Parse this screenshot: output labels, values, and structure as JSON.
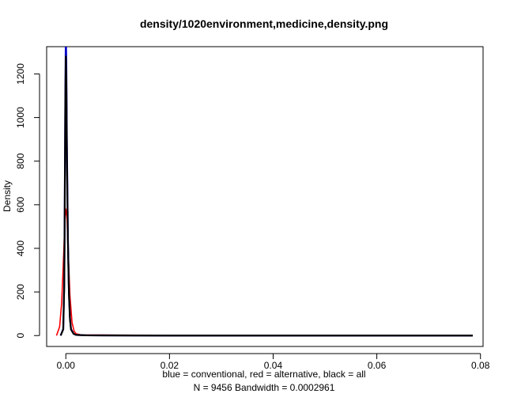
{
  "chart_data": {
    "type": "line",
    "title": "density/1020environment,medicine,density.png",
    "ylabel": "Density",
    "xlabel_line1": "blue = conventional, red = alternative, black = all",
    "xlabel_line2": "N = 9456   Bandwidth = 0.0002961",
    "xlim": [
      -0.0037,
      0.0805
    ],
    "ylim": [
      -50,
      1325
    ],
    "xticks": [
      0.0,
      0.02,
      0.04,
      0.06,
      0.08
    ],
    "xtick_labels": [
      "0.00",
      "0.02",
      "0.04",
      "0.06",
      "0.08"
    ],
    "yticks": [
      0,
      200,
      400,
      600,
      800,
      1000,
      1200
    ],
    "ytick_labels": [
      "0",
      "200",
      "400",
      "600",
      "800",
      "1000",
      "1200"
    ],
    "series": [
      {
        "color": "#ff0000",
        "x": [
          -0.0018,
          -0.0012,
          -0.0008,
          -0.0004,
          -0.0002,
          0.0,
          0.0002,
          0.0004,
          0.0008,
          0.0012,
          0.0016,
          0.002,
          0.003,
          0.01,
          0.03,
          0.05,
          0.07,
          0.0785
        ],
        "y": [
          0,
          40,
          150,
          380,
          520,
          580,
          550,
          420,
          180,
          60,
          20,
          8,
          3,
          2,
          1,
          1,
          1,
          0
        ]
      },
      {
        "color": "#0000cc",
        "x": [
          -0.001,
          -0.0005,
          -0.0003,
          -0.0002,
          -0.0001,
          0.0,
          0.0001,
          0.0002,
          0.0004,
          0.0006,
          0.0008,
          0.001,
          0.0015,
          0.002,
          0.004,
          0.02,
          0.05,
          0.0785
        ],
        "y": [
          0,
          30,
          250,
          650,
          1100,
          1400,
          1250,
          900,
          450,
          200,
          80,
          30,
          8,
          3,
          1,
          0,
          0,
          0
        ]
      },
      {
        "color": "#000000",
        "x": [
          -0.001,
          -0.0005,
          -0.0003,
          -0.0002,
          -0.0001,
          0.0,
          0.0001,
          0.0002,
          0.0004,
          0.0006,
          0.0008,
          0.001,
          0.0015,
          0.002,
          0.004,
          0.02,
          0.05,
          0.0785
        ],
        "y": [
          0,
          28,
          230,
          620,
          1050,
          1280,
          1150,
          850,
          430,
          190,
          75,
          28,
          8,
          3,
          1,
          0,
          0,
          0
        ]
      }
    ]
  }
}
